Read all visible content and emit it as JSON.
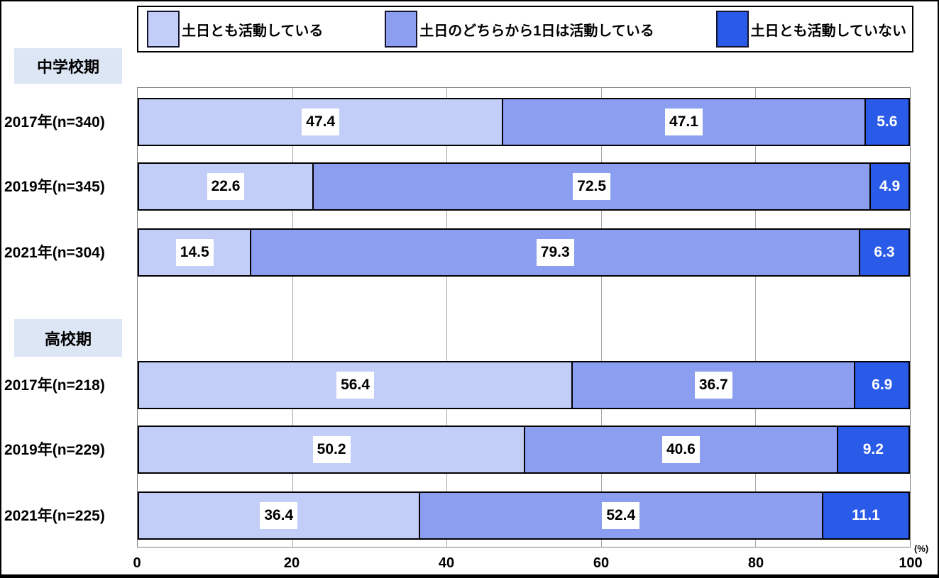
{
  "chart_data": {
    "type": "bar",
    "orientation": "horizontal",
    "stacked": true,
    "series": [
      {
        "name": "土日とも活動している",
        "color": "#c3cef8"
      },
      {
        "name": "土日のどちらから1日は活動している",
        "color": "#8b9ef0"
      },
      {
        "name": "土日とも活動していない",
        "color": "#2a5ae8"
      }
    ],
    "groups": [
      {
        "label": "中学校期",
        "rows": [
          {
            "category": "2017年(n=340)",
            "values": [
              47.4,
              47.1,
              5.6
            ]
          },
          {
            "category": "2019年(n=345)",
            "values": [
              22.6,
              72.5,
              4.9
            ]
          },
          {
            "category": "2021年(n=304)",
            "values": [
              14.5,
              79.3,
              6.3
            ]
          }
        ]
      },
      {
        "label": "高校期",
        "rows": [
          {
            "category": "2017年(n=218)",
            "values": [
              56.4,
              36.7,
              6.9
            ]
          },
          {
            "category": "2019年(n=229)",
            "values": [
              50.2,
              40.6,
              9.2
            ]
          },
          {
            "category": "2021年(n=225)",
            "values": [
              36.4,
              52.4,
              11.1
            ]
          }
        ]
      }
    ],
    "x_axis": {
      "range": [
        0,
        100
      ],
      "ticks": [
        0,
        20,
        40,
        60,
        80,
        100
      ],
      "unit": "(%)",
      "grid": true
    },
    "value_label_colors": {
      "on_light": "#000000",
      "on_dark": "#ffffff"
    },
    "group_header_bg": "#dce6f4"
  }
}
